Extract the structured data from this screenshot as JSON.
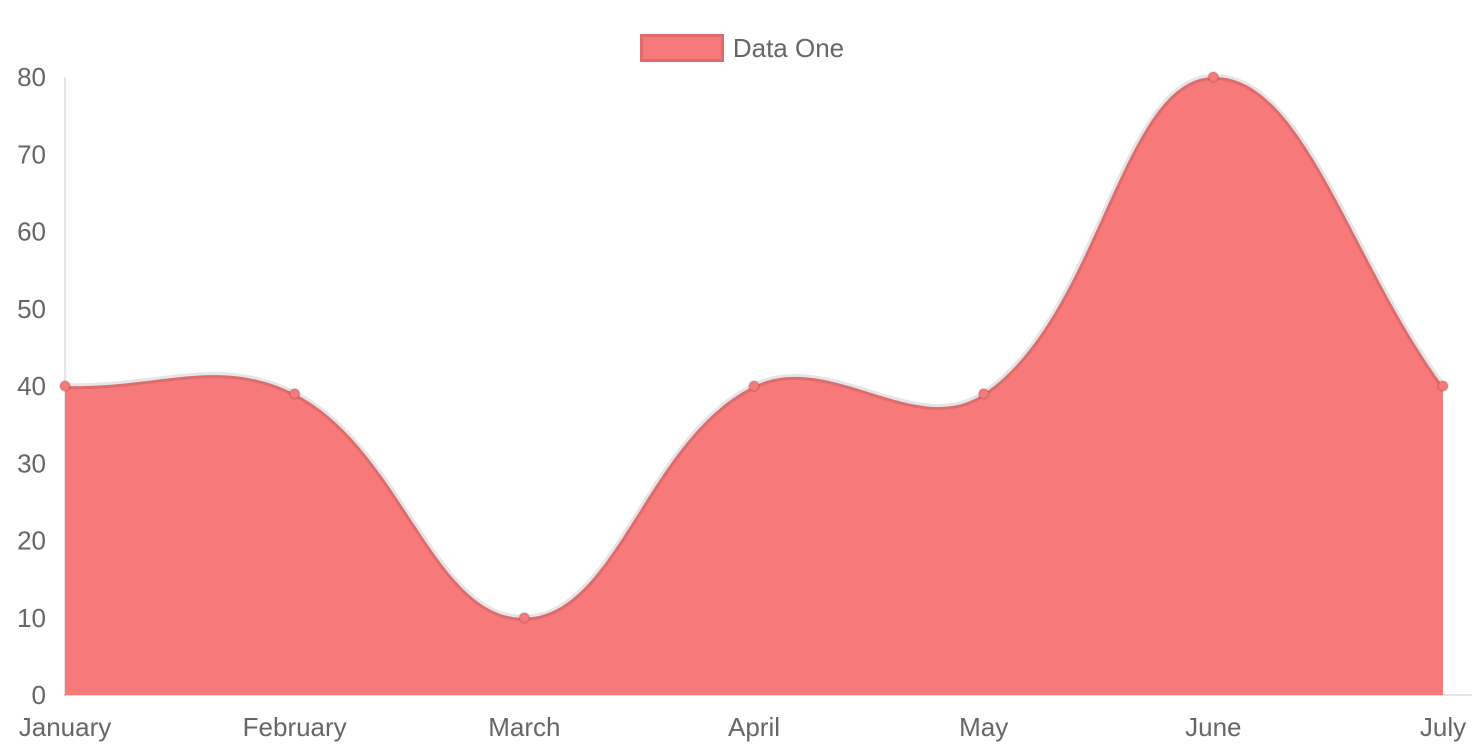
{
  "chart_data": {
    "type": "area",
    "categories": [
      "January",
      "February",
      "March",
      "April",
      "May",
      "June",
      "July"
    ],
    "series": [
      {
        "name": "Data One",
        "values": [
          40,
          39,
          10,
          40,
          39,
          80,
          40
        ],
        "fill_color": "#f87979",
        "line_color": "rgba(0,0,0,0.1)"
      }
    ],
    "xlabel": "",
    "ylabel": "",
    "ylim": [
      0,
      80
    ],
    "yticks": [
      0,
      10,
      20,
      30,
      40,
      50,
      60,
      70,
      80
    ],
    "line_tension": 0.4,
    "grid": "off",
    "legend_position": "top-center"
  },
  "legend": {
    "items": [
      {
        "label": "Data One",
        "swatch_color": "#f87979",
        "swatch_border": "rgba(0,0,0,0.1)"
      }
    ]
  },
  "colors": {
    "fill": "#f87979",
    "point": "#f87979",
    "stroke": "rgba(0,0,0,0.1)",
    "axis": "rgba(0,0,0,0.1)",
    "tick_text": "#666666",
    "background": "#ffffff"
  }
}
